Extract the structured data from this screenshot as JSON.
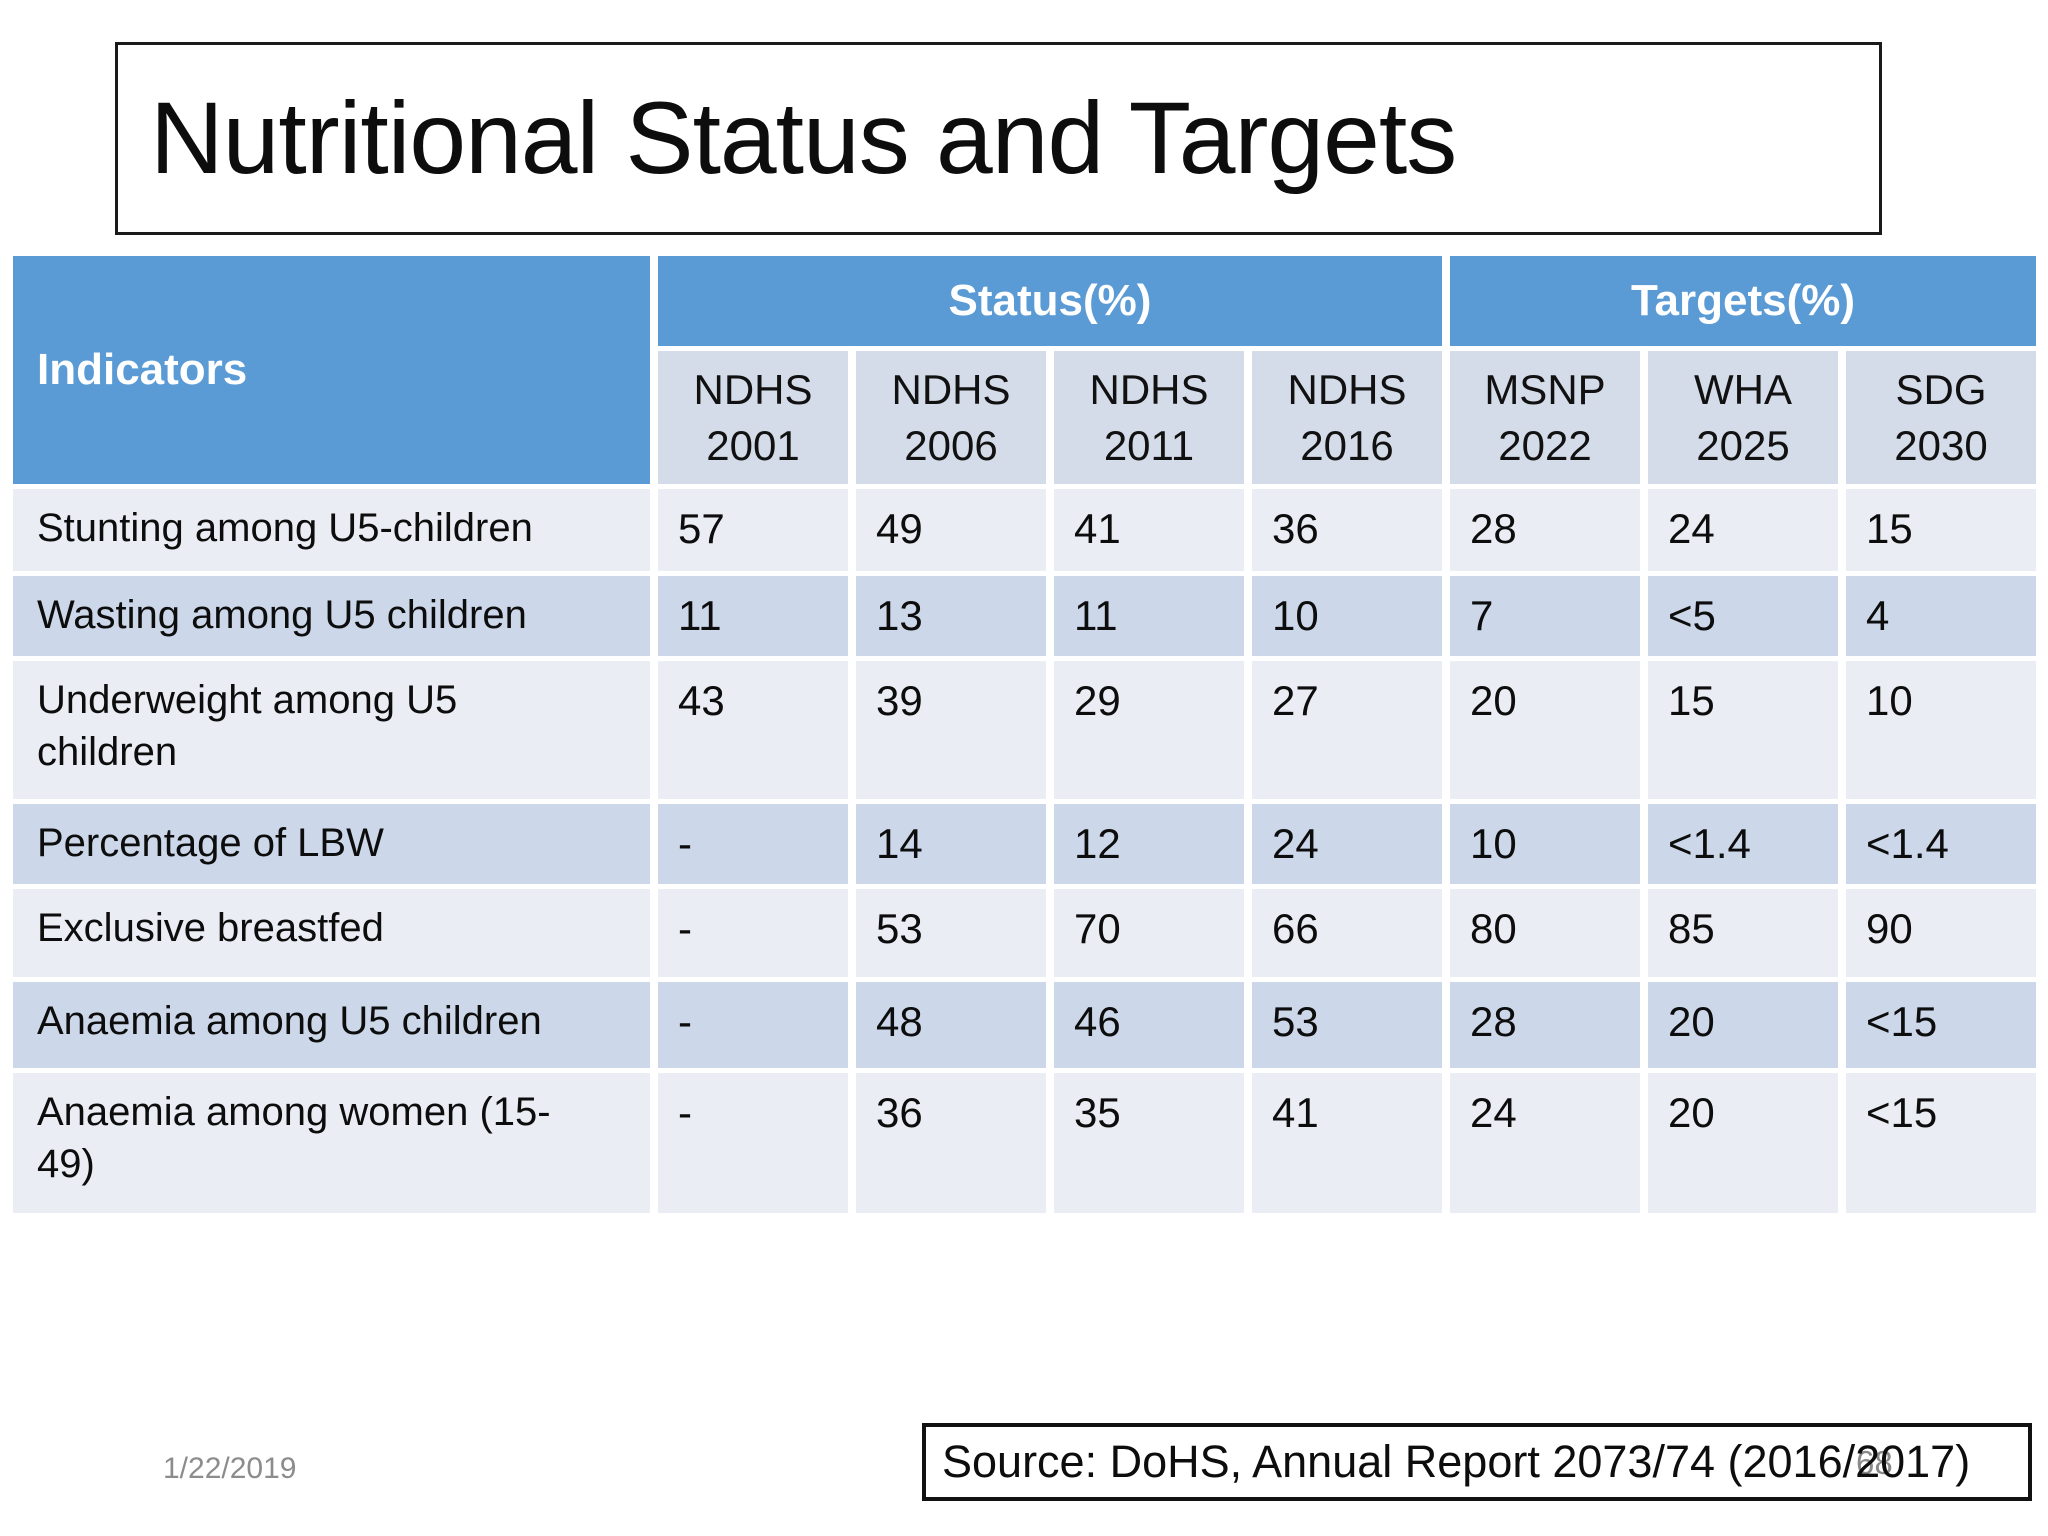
{
  "slide": {
    "title": "Nutritional Status and Targets",
    "footer": {
      "date": "1/22/2019",
      "source": "Source: DoHS, Annual Report 2073/74 (2016/2017)",
      "page_number": "68"
    }
  },
  "table": {
    "indicators_header": "Indicators",
    "groups": [
      {
        "label": "Status(%)",
        "span": 4
      },
      {
        "label": "Targets(%)",
        "span": 3
      }
    ],
    "columns": [
      {
        "line1": "NDHS",
        "line2": "2001"
      },
      {
        "line1": "NDHS",
        "line2": "2006"
      },
      {
        "line1": "NDHS",
        "line2": "2011"
      },
      {
        "line1": "NDHS",
        "line2": "2016"
      },
      {
        "line1": "MSNP",
        "line2": "2022"
      },
      {
        "line1": "WHA",
        "line2": "2025"
      },
      {
        "line1": "SDG",
        "line2": "2030"
      }
    ],
    "rows": [
      {
        "indicator": "Stunting among U5-children",
        "values": [
          "57",
          "49",
          "41",
          "36",
          "28",
          "24",
          "15"
        ]
      },
      {
        "indicator": "Wasting among U5 children",
        "values": [
          "11",
          "13",
          "11",
          "10",
          "7",
          "<5",
          "4"
        ]
      },
      {
        "indicator": "Underweight among U5 children",
        "values": [
          "43",
          "39",
          "29",
          "27",
          "20",
          "15",
          "10"
        ]
      },
      {
        "indicator": "Percentage of LBW",
        "values": [
          "-",
          "14",
          "12",
          "24",
          "10",
          "<1.4",
          "<1.4"
        ]
      },
      {
        "indicator": "Exclusive breastfed",
        "values": [
          "-",
          "53",
          "70",
          "66",
          "80",
          "85",
          "90"
        ]
      },
      {
        "indicator": "Anaemia among U5 children",
        "values": [
          "-",
          "48",
          "46",
          "53",
          "28",
          "20",
          "<15"
        ]
      },
      {
        "indicator": "Anaemia among women (15-49)",
        "values": [
          "-",
          "36",
          "35",
          "41",
          "24",
          "20",
          "<15"
        ]
      }
    ]
  },
  "colors": {
    "header_blue": "#5B9BD5",
    "subheader_bg": "#D5DCE9",
    "row_light": "#EAEDF4",
    "row_dark": "#CCD8EA",
    "header_text": "#FFFFFF",
    "body_text": "#0D0D0D",
    "footer_gray": "#8C8C8C",
    "border_black": "#1A1A1A"
  }
}
